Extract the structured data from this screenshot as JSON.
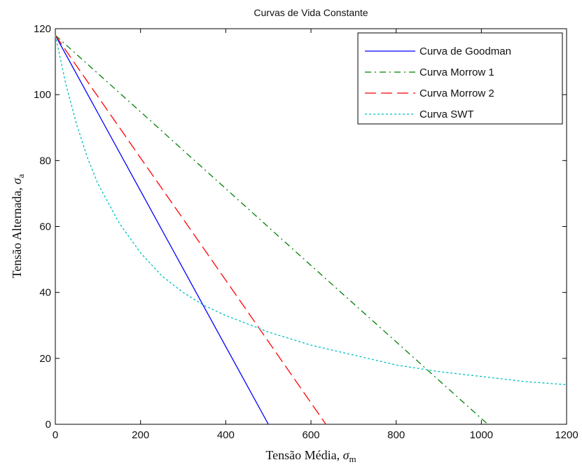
{
  "chart_data": {
    "type": "line",
    "title": "Curvas de Vida Constante",
    "xlabel": "Tensão Média, ",
    "xlabel_symbol": "σ",
    "xlabel_sub": "m",
    "ylabel": "Tensão Alternada, ",
    "ylabel_symbol": "σ",
    "ylabel_sub": "a",
    "xlim": [
      0,
      1200
    ],
    "ylim": [
      0,
      120
    ],
    "xticks": [
      0,
      200,
      400,
      600,
      800,
      1000,
      1200
    ],
    "yticks": [
      0,
      20,
      40,
      60,
      80,
      100,
      120
    ],
    "grid": false,
    "legend_position": "top-right",
    "series": [
      {
        "name": "Curva de Goodman",
        "color": "#0000ff",
        "style": "solid",
        "x": [
          0,
          100,
          200,
          300,
          400,
          500
        ],
        "y": [
          118,
          94.4,
          70.8,
          47.2,
          23.6,
          0
        ]
      },
      {
        "name": "Curva Morrow 1",
        "color": "#008000",
        "style": "dashdot",
        "x": [
          0,
          200,
          400,
          600,
          800,
          1015
        ],
        "y": [
          118,
          94.8,
          71.5,
          48.2,
          25,
          0
        ]
      },
      {
        "name": "Curva Morrow 2",
        "color": "#ff0000",
        "style": "dashed",
        "x": [
          0,
          100,
          200,
          300,
          400,
          500,
          635
        ],
        "y": [
          118,
          99.4,
          80.8,
          62.3,
          43.7,
          25.1,
          0
        ]
      },
      {
        "name": "Curva SWT",
        "color": "#00bfbf",
        "style": "dotted",
        "x": [
          0,
          25,
          50,
          75,
          100,
          150,
          200,
          250,
          300,
          350,
          400,
          500,
          600,
          700,
          800,
          900,
          1000,
          1100,
          1200
        ],
        "y": [
          118,
          103,
          91,
          81,
          73,
          61,
          52,
          45,
          40,
          36,
          33,
          28,
          24,
          21,
          18,
          16,
          14.5,
          13,
          12
        ]
      }
    ]
  }
}
